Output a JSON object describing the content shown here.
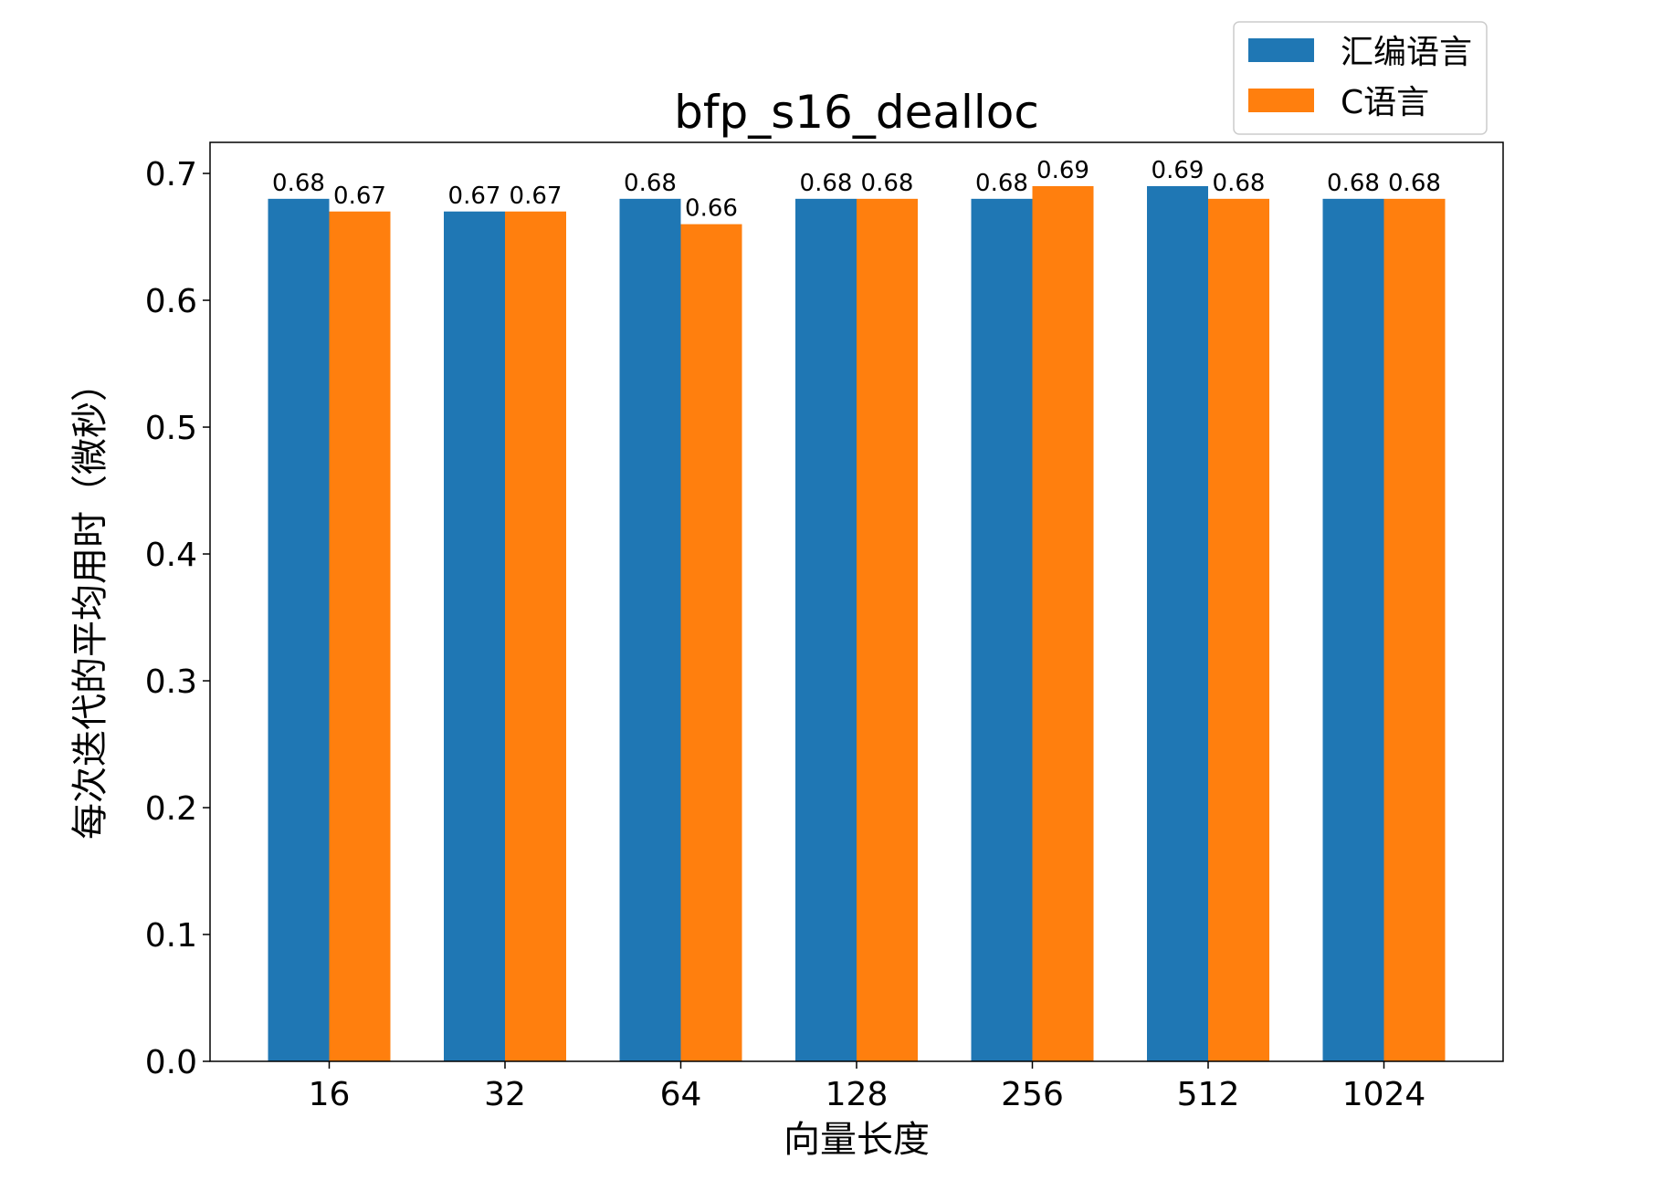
{
  "chart_data": {
    "type": "bar",
    "title": "bfp_s16_dealloc",
    "xlabel": "向量长度",
    "ylabel": "每次迭代的平均用时（微秒）",
    "categories": [
      "16",
      "32",
      "64",
      "128",
      "256",
      "512",
      "1024"
    ],
    "series": [
      {
        "name": "汇编语言",
        "color": "#1f77b4",
        "values": [
          0.68,
          0.67,
          0.68,
          0.68,
          0.68,
          0.69,
          0.68
        ]
      },
      {
        "name": "C语言",
        "color": "#ff7f0e",
        "values": [
          0.67,
          0.67,
          0.66,
          0.68,
          0.69,
          0.68,
          0.68
        ]
      }
    ],
    "ylim": [
      0,
      0.7245
    ],
    "yticks": [
      "0.0",
      "0.1",
      "0.2",
      "0.3",
      "0.4",
      "0.5",
      "0.6",
      "0.7"
    ],
    "grid": false,
    "legend": "top-right",
    "data_labels": true
  }
}
